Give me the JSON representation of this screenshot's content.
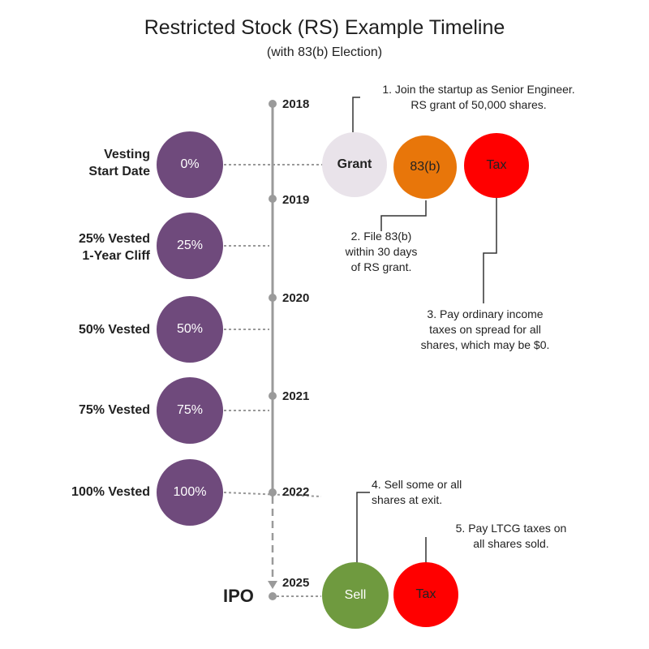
{
  "title": "Restricted Stock (RS) Example Timeline",
  "subtitle": "(with 83(b) Election)",
  "years": [
    "2018",
    "2019",
    "2020",
    "2021",
    "2022",
    "2025"
  ],
  "ipo_label": "IPO",
  "milestones": [
    {
      "label": "Vesting\nStart Date",
      "percent": "0%"
    },
    {
      "label": "25% Vested\n1-Year Cliff",
      "percent": "25%"
    },
    {
      "label": "50% Vested",
      "percent": "50%"
    },
    {
      "label": "75% Vested",
      "percent": "75%"
    },
    {
      "label": "100% Vested",
      "percent": "100%"
    }
  ],
  "events": {
    "grant": "Grant",
    "election": "83(b)",
    "tax1": "Tax",
    "sell": "Sell",
    "tax2": "Tax"
  },
  "notes": {
    "n1": "1. Join the startup as Senior Engineer.\nRS grant of 50,000 shares.",
    "n2": "2. File 83(b)\nwithin 30 days\nof RS grant.",
    "n3": "3. Pay ordinary income\ntaxes on spread for all\nshares, which may be $0.",
    "n4": "4. Sell some or all\nshares at exit.",
    "n5": "5. Pay LTCG taxes on\nall shares sold."
  },
  "colors": {
    "purple": "#6f4a7c",
    "grant": "#e9e3ea",
    "election": "#e8760a",
    "tax": "#ff0000",
    "sell": "#6f9a3f",
    "axis": "#9a9a9a"
  }
}
